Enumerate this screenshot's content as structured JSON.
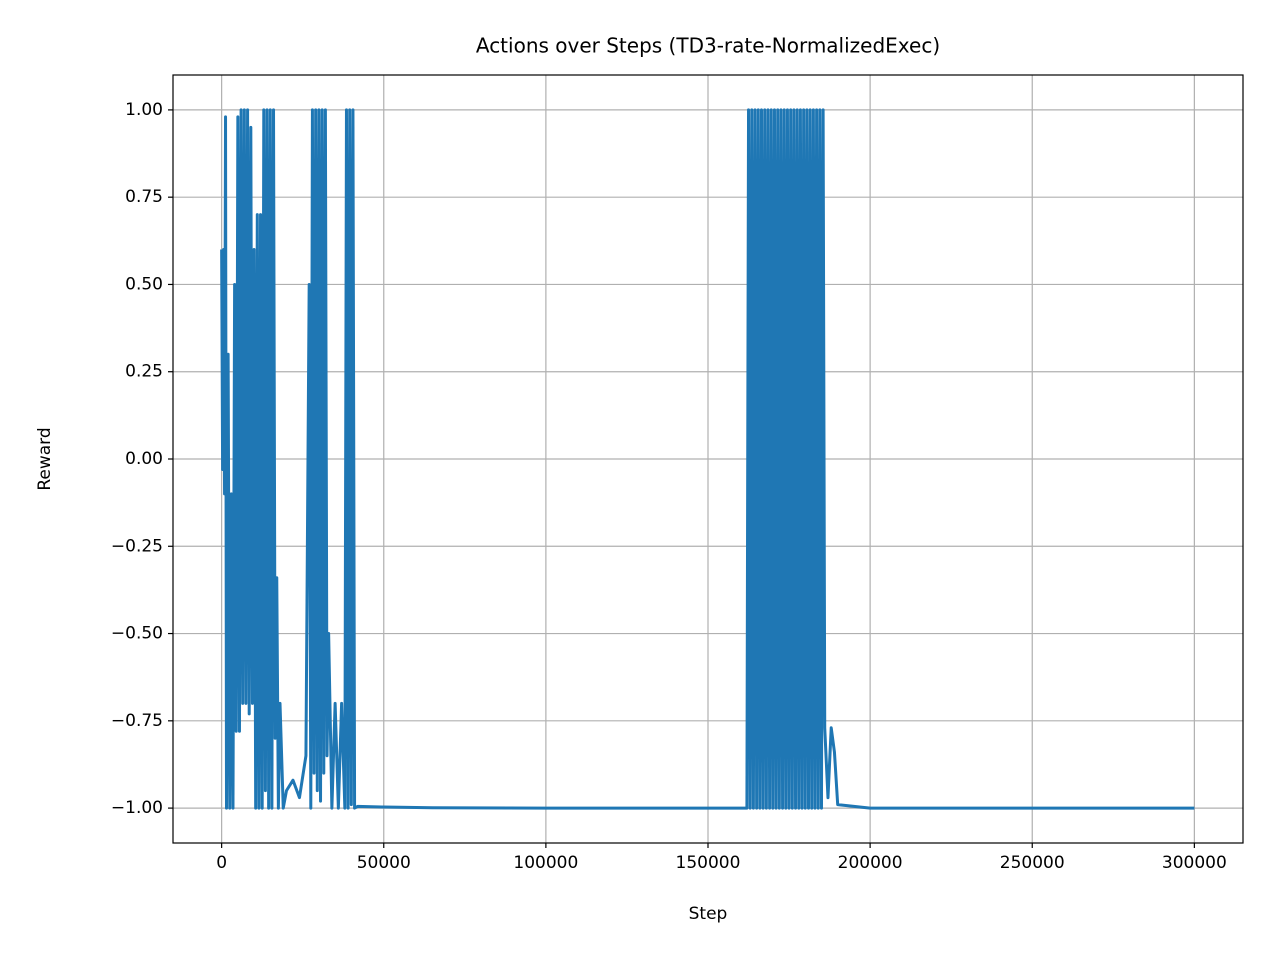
{
  "chart_data": {
    "type": "line",
    "title": "Actions over Steps (TD3-rate-NormalizedExec)",
    "x_label": "Step",
    "y_label": "Reward",
    "color": "#1f77b4",
    "grid": true,
    "xlim": [
      -15000,
      315000
    ],
    "ylim": [
      -1.1,
      1.1
    ],
    "xticks": [
      0,
      50000,
      100000,
      150000,
      200000,
      250000,
      300000
    ],
    "yticks": [
      {
        "value": -1,
        "label": "−1.00"
      },
      {
        "value": -0.75,
        "label": "−0.75"
      },
      {
        "value": -0.5,
        "label": "−0.50"
      },
      {
        "value": -0.25,
        "label": "−0.25"
      },
      {
        "value": 0,
        "label": "0.00"
      },
      {
        "value": 0.25,
        "label": "0.25"
      },
      {
        "value": 0.5,
        "label": "0.50"
      },
      {
        "value": 0.75,
        "label": "0.75"
      },
      {
        "value": 1,
        "label": "1.00"
      }
    ],
    "x": [
      0,
      300,
      600,
      900,
      1200,
      1500,
      2000,
      2500,
      3000,
      3500,
      4000,
      4500,
      5000,
      5500,
      6000,
      6500,
      7000,
      7500,
      8000,
      8500,
      9000,
      9500,
      10000,
      10500,
      11000,
      11500,
      12000,
      12500,
      13000,
      13500,
      14000,
      14500,
      15000,
      15500,
      16000,
      16500,
      17000,
      17500,
      18000,
      19000,
      20000,
      22000,
      24000,
      26000,
      27000,
      27500,
      28000,
      28500,
      29000,
      29500,
      30000,
      30500,
      31000,
      31500,
      32000,
      32500,
      33000,
      34000,
      35000,
      36000,
      37000,
      38000,
      38500,
      39000,
      39500,
      40000,
      40500,
      41000,
      42000,
      50000,
      65000,
      100000,
      162000,
      162500,
      163000,
      163500,
      164000,
      164500,
      165000,
      165500,
      166000,
      166500,
      167000,
      167500,
      168000,
      168500,
      169000,
      169500,
      170000,
      170500,
      171000,
      171500,
      172000,
      172500,
      173000,
      173500,
      174000,
      174500,
      175000,
      175500,
      176000,
      176500,
      177000,
      177500,
      178000,
      178500,
      179000,
      179500,
      180000,
      180500,
      181000,
      181500,
      182000,
      182500,
      183000,
      183500,
      184000,
      184500,
      185000,
      185500,
      186000,
      187000,
      188000,
      189000,
      190000,
      200000,
      300000
    ],
    "values": [
      0.6,
      -0.03,
      0.6,
      -0.1,
      0.98,
      -1,
      0.3,
      -1,
      -0.1,
      -1,
      0.5,
      -0.78,
      0.98,
      -0.78,
      1,
      -0.7,
      1,
      -0.7,
      1,
      -0.73,
      0.95,
      -0.7,
      0.6,
      -1,
      0.7,
      -1,
      0.7,
      -1,
      1,
      -0.95,
      1,
      -1,
      1,
      -1,
      1,
      -0.8,
      -0.34,
      -1,
      -0.7,
      -1,
      -0.95,
      -0.92,
      -0.97,
      -0.85,
      0.5,
      -1,
      1,
      -0.9,
      1,
      -0.95,
      1,
      -0.98,
      1,
      -0.9,
      1,
      -0.85,
      -0.5,
      -1,
      -0.7,
      -1,
      -0.7,
      -1,
      1,
      -1,
      1,
      -0.99,
      1,
      -1,
      -0.995,
      -0.997,
      -0.999,
      -1,
      -1,
      1,
      -1,
      1,
      -1,
      1,
      -1,
      1,
      -1,
      1,
      -1,
      1,
      -1,
      1,
      -1,
      1,
      -1,
      1,
      -1,
      1,
      -1,
      1,
      -1,
      1,
      -1,
      1,
      -1,
      1,
      -1,
      1,
      -1,
      1,
      -1,
      1,
      -1,
      1,
      -1,
      1,
      -1,
      1,
      -1,
      1,
      -1,
      1,
      -1,
      1,
      -1,
      1,
      -0.77,
      -0.97,
      -0.77,
      -0.84,
      -0.99,
      -1,
      -1
    ]
  }
}
